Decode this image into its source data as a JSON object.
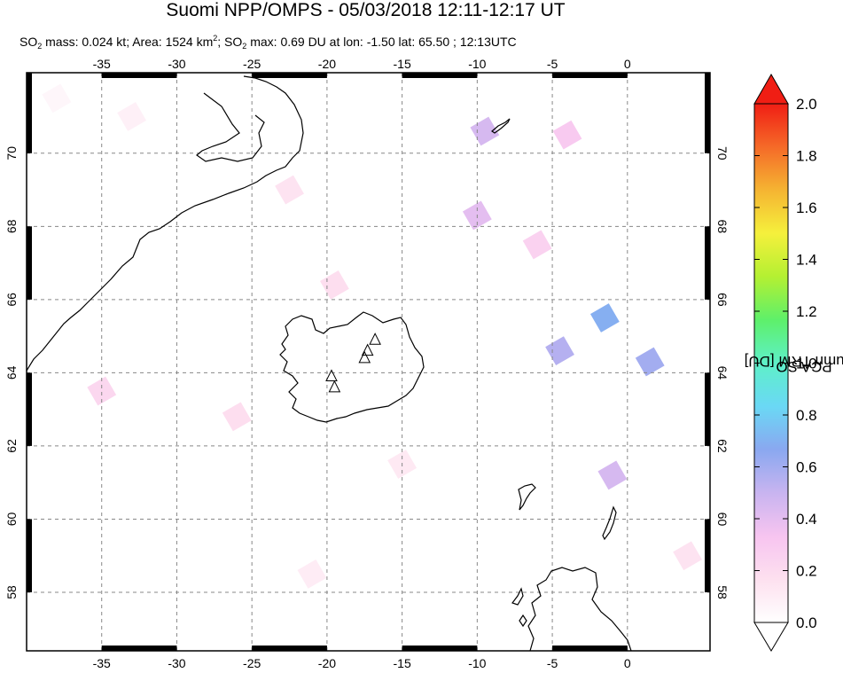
{
  "title": "Suomi NPP/OMPS - 05/03/2018 12:11-12:17 UT",
  "subtitle": {
    "so2_mass": "0.024 kt",
    "area": "1524 km",
    "so2_max": "0.69 DU",
    "lon": "-1.50",
    "lat": "65.50",
    "time": "12:13UTC"
  },
  "colorbar": {
    "label": "PCA SO2 column TRM [DU]",
    "label_prefix": "PCA SO",
    "label_sub": "2",
    "label_suffix": " column TRM [DU]",
    "ticks": [
      "0.0",
      "0.2",
      "0.4",
      "0.6",
      "0.8",
      "1.0",
      "1.2",
      "1.4",
      "1.6",
      "1.8",
      "2.0"
    ],
    "range": [
      0.0,
      2.0
    ],
    "colors": [
      "#ffffff",
      "#fde0ef",
      "#f7c4f0",
      "#c8b4f0",
      "#8aa8f0",
      "#6ad8f5",
      "#5ef0c8",
      "#5ef06a",
      "#b4f032",
      "#f5f03c",
      "#f5b432",
      "#f56a28",
      "#f01e14"
    ]
  },
  "chart_data": {
    "type": "heatmap",
    "title": "Suomi NPP/OMPS - 05/03/2018 12:11-12:17 UT",
    "xlabel": "",
    "ylabel": "",
    "x_ticks": [
      "-35",
      "-30",
      "-25",
      "-20",
      "-15",
      "-10",
      "-5",
      "0"
    ],
    "y_ticks": [
      "58",
      "60",
      "62",
      "64",
      "66",
      "68",
      "70"
    ],
    "xlim": [
      -40,
      5.5
    ],
    "ylim": [
      56.4,
      72.2
    ],
    "grid": true,
    "cells": [
      {
        "lon": -38,
        "lat": 71.5,
        "value": 0.05
      },
      {
        "lon": -33,
        "lat": 71.0,
        "value": 0.08
      },
      {
        "lon": -9.5,
        "lat": 70.6,
        "value": 0.45
      },
      {
        "lon": -4,
        "lat": 70.5,
        "value": 0.3
      },
      {
        "lon": -22.5,
        "lat": 69.0,
        "value": 0.15
      },
      {
        "lon": -10,
        "lat": 68.3,
        "value": 0.4
      },
      {
        "lon": -6,
        "lat": 67.5,
        "value": 0.25
      },
      {
        "lon": -19.5,
        "lat": 66.4,
        "value": 0.18
      },
      {
        "lon": -1.5,
        "lat": 65.5,
        "value": 0.69
      },
      {
        "lon": -4.5,
        "lat": 64.6,
        "value": 0.55
      },
      {
        "lon": 1.5,
        "lat": 64.3,
        "value": 0.6
      },
      {
        "lon": -1.0,
        "lat": 61.2,
        "value": 0.45
      },
      {
        "lon": -35,
        "lat": 63.5,
        "value": 0.22
      },
      {
        "lon": -26,
        "lat": 62.8,
        "value": 0.18
      },
      {
        "lon": -15,
        "lat": 61.5,
        "value": 0.12
      },
      {
        "lon": -21,
        "lat": 58.5,
        "value": 0.1
      },
      {
        "lon": 4,
        "lat": 59.0,
        "value": 0.15
      }
    ],
    "volcanoes": [
      {
        "lon": -19.7,
        "lat": 63.9
      },
      {
        "lon": -19.5,
        "lat": 63.6
      },
      {
        "lon": -17.3,
        "lat": 64.6
      },
      {
        "lon": -17.5,
        "lat": 64.4
      },
      {
        "lon": -16.8,
        "lat": 64.9
      }
    ]
  }
}
